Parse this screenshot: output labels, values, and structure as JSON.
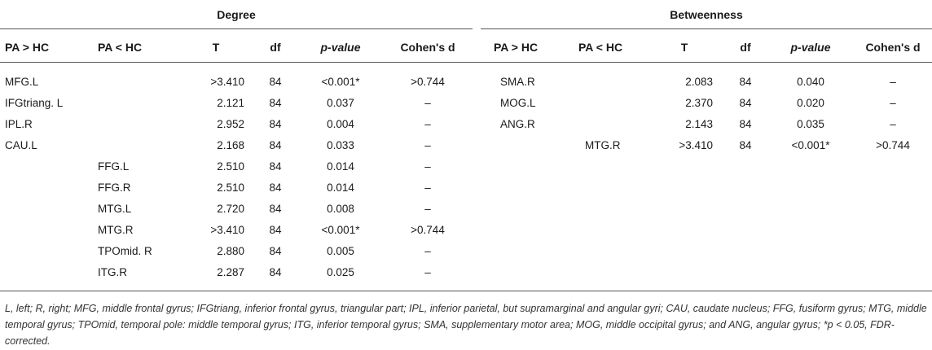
{
  "degree": {
    "title": "Degree",
    "headers": [
      "PA > HC",
      "PA < HC",
      "T",
      "df",
      "p-value",
      "Cohen's d"
    ],
    "rows": [
      {
        "pa_gt": "MFG.L",
        "pa_lt": "",
        "t": ">3.410",
        "df": "84",
        "p": "<0.001*",
        "d": ">0.744"
      },
      {
        "pa_gt": "IFGtriang. L",
        "pa_lt": "",
        "t": "2.121",
        "df": "84",
        "p": "0.037",
        "d": "–"
      },
      {
        "pa_gt": "IPL.R",
        "pa_lt": "",
        "t": "2.952",
        "df": "84",
        "p": "0.004",
        "d": "–"
      },
      {
        "pa_gt": "CAU.L",
        "pa_lt": "",
        "t": "2.168",
        "df": "84",
        "p": "0.033",
        "d": "–"
      },
      {
        "pa_gt": "",
        "pa_lt": "FFG.L",
        "t": "2.510",
        "df": "84",
        "p": "0.014",
        "d": "–"
      },
      {
        "pa_gt": "",
        "pa_lt": "FFG.R",
        "t": "2.510",
        "df": "84",
        "p": "0.014",
        "d": "–"
      },
      {
        "pa_gt": "",
        "pa_lt": "MTG.L",
        "t": "2.720",
        "df": "84",
        "p": "0.008",
        "d": "–"
      },
      {
        "pa_gt": "",
        "pa_lt": "MTG.R",
        "t": ">3.410",
        "df": "84",
        "p": "<0.001*",
        "d": ">0.744"
      },
      {
        "pa_gt": "",
        "pa_lt": "TPOmid. R",
        "t": "2.880",
        "df": "84",
        "p": "0.005",
        "d": "–"
      },
      {
        "pa_gt": "",
        "pa_lt": "ITG.R",
        "t": "2.287",
        "df": "84",
        "p": "0.025",
        "d": "–"
      }
    ]
  },
  "betweenness": {
    "title": "Betweenness",
    "headers": [
      "PA > HC",
      "PA < HC",
      "T",
      "df",
      "p-value",
      "Cohen's d"
    ],
    "rows": [
      {
        "pa_gt": "SMA.R",
        "pa_lt": "",
        "t": "2.083",
        "df": "84",
        "p": "0.040",
        "d": "–"
      },
      {
        "pa_gt": "MOG.L",
        "pa_lt": "",
        "t": "2.370",
        "df": "84",
        "p": "0.020",
        "d": "–"
      },
      {
        "pa_gt": "ANG.R",
        "pa_lt": "",
        "t": "2.143",
        "df": "84",
        "p": "0.035",
        "d": "–"
      },
      {
        "pa_gt": "",
        "pa_lt": "MTG.R",
        "t": ">3.410",
        "df": "84",
        "p": "<0.001*",
        "d": ">0.744"
      }
    ]
  },
  "footnote": "L, left; R, right; MFG, middle frontal gyrus; IFGtriang, inferior frontal gyrus, triangular part; IPL, inferior parietal, but supramarginal and angular gyri; CAU, caudate nucleus; FFG, fusiform gyrus; MTG, middle temporal gyrus; TPOmid, temporal pole: middle temporal gyrus; ITG, inferior temporal gyrus; SMA, supplementary motor area; MOG, middle occipital gyrus; and ANG, angular gyrus; *p < 0.05, FDR-corrected."
}
